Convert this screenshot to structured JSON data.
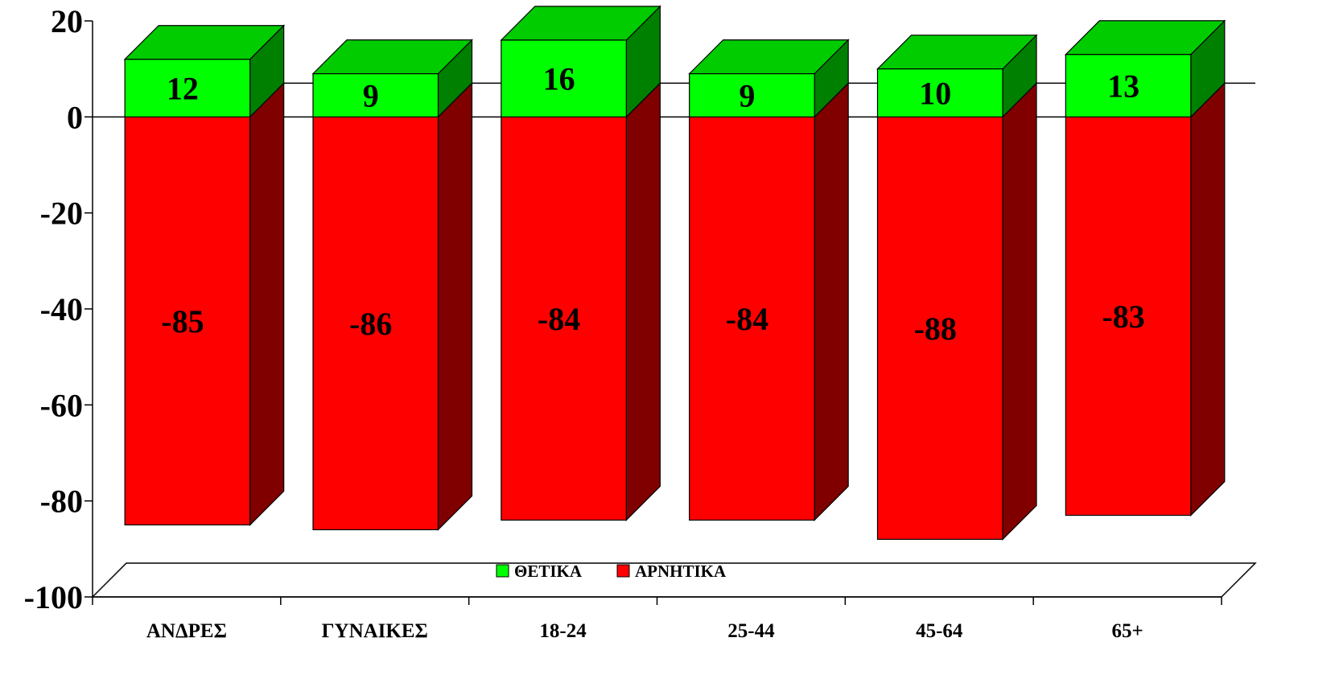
{
  "chart_data": {
    "type": "bar",
    "stacked": true,
    "three_d": true,
    "categories": [
      "ΑΝΔΡΕΣ",
      "ΓΥΝΑΙΚΕΣ",
      "18-24",
      "25-44",
      "45-64",
      "65+"
    ],
    "series": [
      {
        "name": "ΘΕΤΙΚΑ",
        "values": [
          12,
          9,
          16,
          9,
          10,
          13
        ],
        "color": "#00ff00",
        "side_color": "#008000"
      },
      {
        "name": "ΑΡΝΗΤΙΚΑ",
        "values": [
          -85,
          -86,
          -84,
          -84,
          -88,
          -83
        ],
        "color": "#ff0000",
        "side_color": "#800000"
      }
    ],
    "ylim": [
      -100,
      20
    ],
    "yticks": [
      20,
      0,
      -20,
      -40,
      -60,
      -80,
      -100
    ],
    "ytick_labels": [
      "20",
      "0",
      "-20",
      "-40",
      "-60",
      "-80",
      "-100"
    ],
    "value_labels": {
      "positive": [
        "12",
        "9",
        "16",
        "9",
        "10",
        "13"
      ],
      "negative": [
        "-85",
        "-86",
        "-84",
        "-84",
        "-88",
        "-83"
      ]
    },
    "title": "",
    "xlabel": "",
    "ylabel": "",
    "grid": false,
    "legend_position": "bottom-center"
  }
}
